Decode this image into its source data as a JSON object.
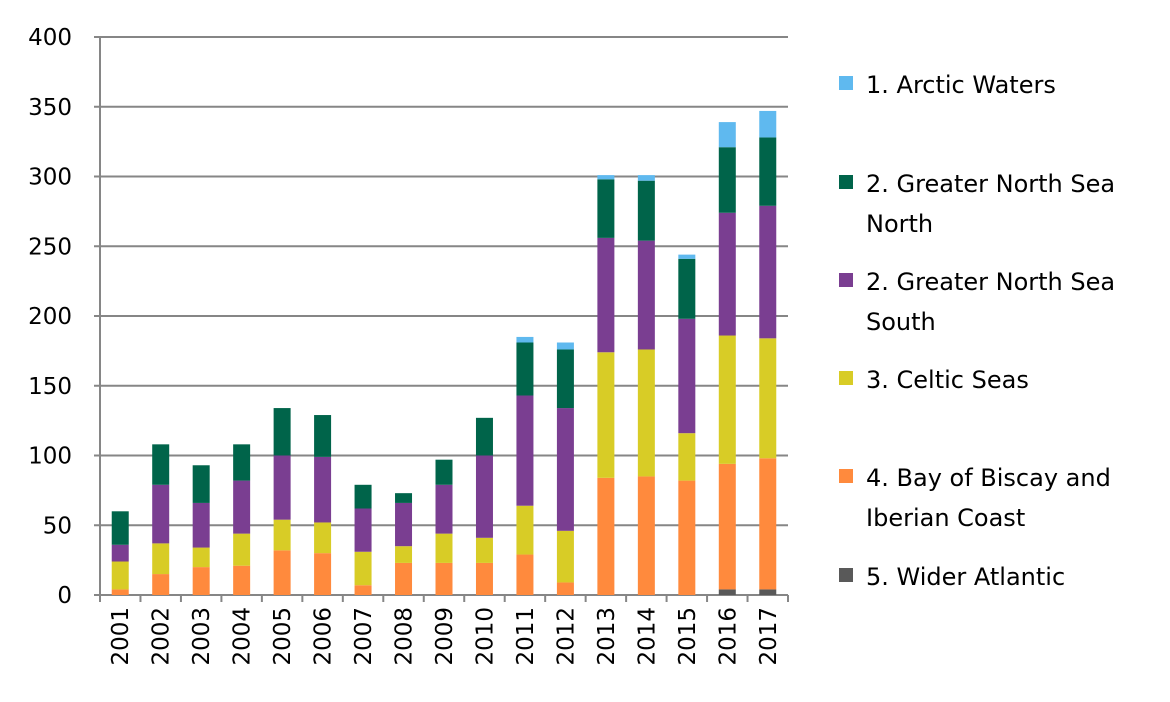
{
  "chart_data": {
    "type": "bar",
    "stacked": true,
    "title": "",
    "xlabel": "",
    "ylabel": "",
    "ylim": [
      0,
      400
    ],
    "yticks": [
      0,
      50,
      100,
      150,
      200,
      250,
      300,
      350,
      400
    ],
    "grid": true,
    "legend_placement": "right",
    "categories": [
      "2001",
      "2002",
      "2003",
      "2004",
      "2005",
      "2006",
      "2007",
      "2008",
      "2009",
      "2010",
      "2011",
      "2012",
      "2013",
      "2014",
      "2015",
      "2016",
      "2017"
    ],
    "series": [
      {
        "name": "5. Wider Atlantic",
        "color": "#595959",
        "values": [
          0,
          0,
          0,
          0,
          0,
          0,
          0,
          0,
          0,
          0,
          0,
          0,
          0,
          0,
          0,
          4,
          4
        ]
      },
      {
        "name": "4. Bay of Biscay and Iberian Coast",
        "color": "#ff8a3d",
        "values": [
          4,
          15,
          20,
          21,
          32,
          30,
          7,
          23,
          23,
          23,
          29,
          9,
          84,
          85,
          82,
          90,
          94
        ]
      },
      {
        "name": "3. Celtic Seas",
        "color": "#d8cc26",
        "values": [
          20,
          22,
          14,
          23,
          22,
          22,
          24,
          12,
          21,
          18,
          35,
          37,
          90,
          91,
          34,
          92,
          86
        ]
      },
      {
        "name": "2. Greater North Sea South",
        "color": "#7a3e91",
        "values": [
          12,
          42,
          32,
          38,
          46,
          47,
          31,
          31,
          35,
          59,
          79,
          88,
          82,
          78,
          82,
          88,
          95
        ]
      },
      {
        "name": "2. Greater North Sea North",
        "color": "#00644a",
        "values": [
          24,
          29,
          27,
          26,
          34,
          30,
          17,
          7,
          18,
          27,
          38,
          42,
          42,
          43,
          43,
          47,
          49
        ]
      },
      {
        "name": "1. Arctic Waters",
        "color": "#5fb9ef",
        "values": [
          0,
          0,
          0,
          0,
          0,
          0,
          0,
          0,
          0,
          0,
          4,
          5,
          3,
          4,
          3,
          18,
          19
        ]
      }
    ],
    "legend_lines": [
      [
        "1. Arctic Waters"
      ],
      [
        "2. Greater North Sea",
        "North"
      ],
      [
        "2. Greater North Sea",
        "South"
      ],
      [
        "3. Celtic Seas"
      ],
      [
        "4. Bay of Biscay and",
        "Iberian Coast"
      ],
      [
        "5. Wider Atlantic"
      ]
    ]
  }
}
